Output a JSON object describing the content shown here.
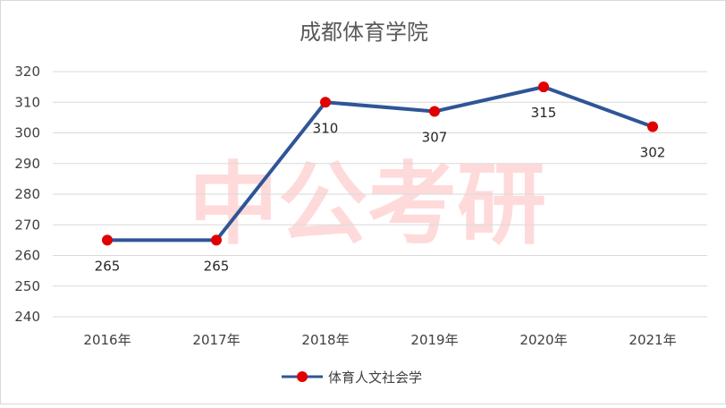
{
  "chart_data": {
    "type": "line",
    "title": "成都体育学院",
    "categories": [
      "2016年",
      "2017年",
      "2018年",
      "2019年",
      "2020年",
      "2021年"
    ],
    "series": [
      {
        "name": "体育人文社会学",
        "values": [
          265,
          265,
          310,
          307,
          315,
          302
        ]
      }
    ],
    "ylim": [
      240,
      320
    ],
    "yticks": [
      240,
      250,
      260,
      270,
      280,
      290,
      300,
      310,
      320
    ],
    "grid": true,
    "legend": "bottom",
    "data_labels": true,
    "colors": {
      "line": "#2f5597",
      "marker": "#e00000",
      "grid": "#d9d9d9"
    }
  },
  "watermark": "中公考研"
}
